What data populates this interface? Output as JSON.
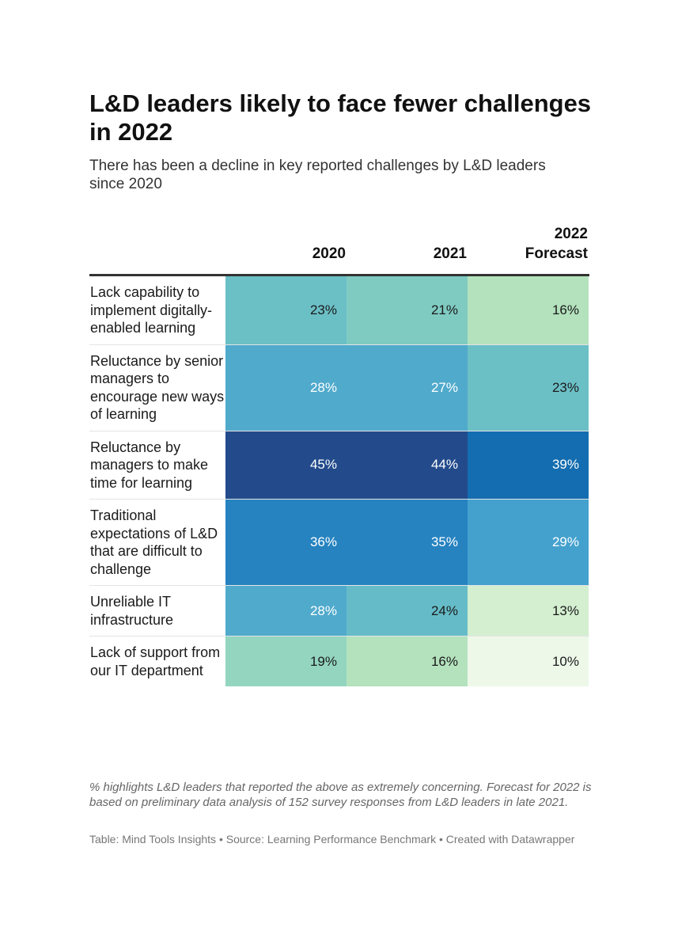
{
  "title": "L&D leaders likely to face fewer challenges in 2022",
  "subtitle": "There has been a decline in key reported challenges by L&D leaders since 2020",
  "note": "% highlights L&D leaders that reported the above as extremely concerning. Forecast for 2022 is based on preliminary data analysis of 152 survey responses from L&D leaders in late 2021.",
  "source": "Table: Mind Tools Insights • Source: Learning Performance Benchmark • Created with Datawrapper",
  "chart_data": {
    "type": "heatmap",
    "title": "L&D leaders likely to face fewer challenges in 2022",
    "columns": [
      "2020",
      "2021",
      "2022\nForecast"
    ],
    "rows": [
      {
        "label": "Lack capability to implement digitally-enabled learning",
        "values": [
          23,
          21,
          16
        ],
        "display": [
          "23%",
          "21%",
          "16%"
        ]
      },
      {
        "label": "Reluctance by senior managers to encourage new ways of learning",
        "values": [
          28,
          27,
          23
        ],
        "display": [
          "28%",
          "27%",
          "23%"
        ]
      },
      {
        "label": "Reluctance by managers to make time for learning",
        "values": [
          45,
          44,
          39
        ],
        "display": [
          "45%",
          "44%",
          "39%"
        ]
      },
      {
        "label": "Traditional expectations of L&D that are difficult to challenge",
        "values": [
          36,
          35,
          29
        ],
        "display": [
          "36%",
          "35%",
          "29%"
        ]
      },
      {
        "label": "Unreliable IT infrastructure",
        "values": [
          28,
          24,
          13
        ],
        "display": [
          "28%",
          "24%",
          "13%"
        ]
      },
      {
        "label": "Lack of support from our IT department",
        "values": [
          19,
          16,
          10
        ],
        "display": [
          "19%",
          "16%",
          "10%"
        ]
      }
    ],
    "color_scale": {
      "stops": [
        {
          "value": 10,
          "color": "#edf8e9"
        },
        {
          "value": 13,
          "color": "#d3efd0"
        },
        {
          "value": 16,
          "color": "#b3e2bd"
        },
        {
          "value": 19,
          "color": "#94d5c0"
        },
        {
          "value": 21,
          "color": "#7fcbc2"
        },
        {
          "value": 23,
          "color": "#6bc0c6"
        },
        {
          "value": 24,
          "color": "#65bcc8"
        },
        {
          "value": 27,
          "color": "#50aacc"
        },
        {
          "value": 29,
          "color": "#44a1ce"
        },
        {
          "value": 35,
          "color": "#2683c0"
        },
        {
          "value": 39,
          "color": "#136db0"
        },
        {
          "value": 45,
          "color": "#234b8c"
        }
      ],
      "light_text_threshold": 26
    }
  }
}
